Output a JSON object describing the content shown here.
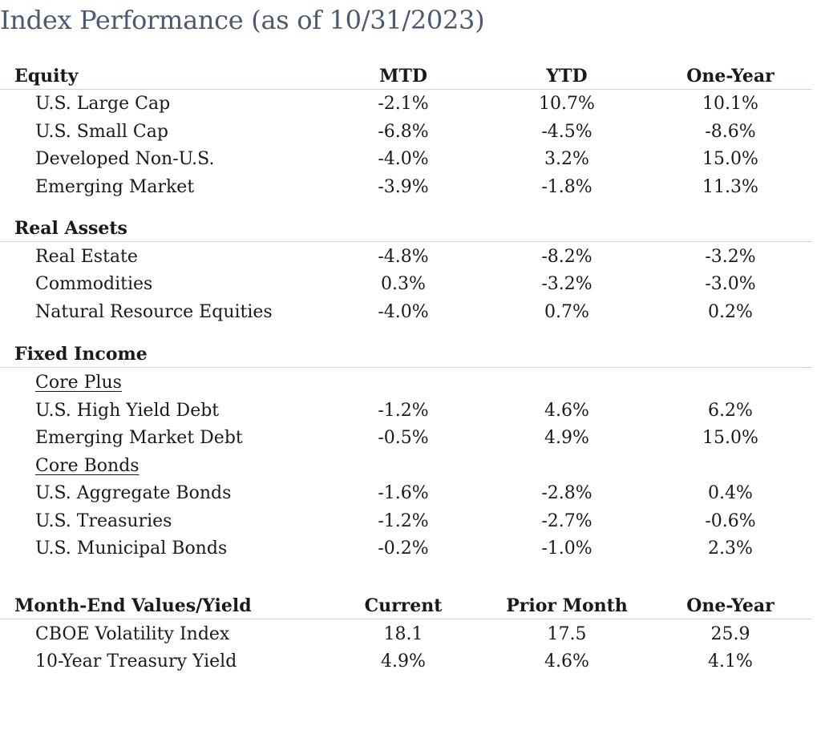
{
  "title": "Index Performance (as of 10/31/2023)",
  "sections": {
    "equity": {
      "header": [
        "Equity",
        "MTD",
        "YTD",
        "One-Year"
      ],
      "rows": [
        [
          "U.S. Large Cap",
          "-2.1%",
          "10.7%",
          "10.1%"
        ],
        [
          "U.S. Small Cap",
          "-6.8%",
          "-4.5%",
          "-8.6%"
        ],
        [
          "Developed Non-U.S.",
          "-4.0%",
          "3.2%",
          "15.0%"
        ],
        [
          "Emerging Market",
          "-3.9%",
          "-1.8%",
          "11.3%"
        ]
      ]
    },
    "real_assets": {
      "header": [
        "Real Assets"
      ],
      "rows": [
        [
          "Real Estate",
          "-4.8%",
          "-8.2%",
          "-3.2%"
        ],
        [
          "Commodities",
          "0.3%",
          "-3.2%",
          "-3.0%"
        ],
        [
          "Natural Resource Equities",
          "-4.0%",
          "0.7%",
          "0.2%"
        ]
      ]
    },
    "fixed_income": {
      "header": [
        "Fixed Income"
      ],
      "core_plus_label": "Core Plus",
      "core_plus_rows": [
        [
          "U.S. High Yield Debt",
          "-1.2%",
          "4.6%",
          "6.2%"
        ],
        [
          "Emerging Market Debt",
          "-0.5%",
          "4.9%",
          "15.0%"
        ]
      ],
      "core_bonds_label": "Core Bonds",
      "core_bonds_rows": [
        [
          "U.S. Aggregate Bonds",
          "-1.6%",
          "-2.8%",
          "0.4%"
        ],
        [
          "U.S. Treasuries",
          "-1.2%",
          "-2.7%",
          "-0.6%"
        ],
        [
          "U.S. Municipal Bonds",
          "-0.2%",
          "-1.0%",
          "2.3%"
        ]
      ]
    },
    "month_end": {
      "header": [
        "Month-End Values/Yield",
        "Current",
        "Prior Month",
        "One-Year"
      ],
      "rows": [
        [
          "CBOE Volatility Index",
          "18.1",
          "17.5",
          "25.9"
        ],
        [
          "10-Year Treasury Yield",
          "4.9%",
          "4.6%",
          "4.1%"
        ]
      ]
    }
  },
  "colors": {
    "title": "#4a5a72",
    "text": "#1a1a1a",
    "rule": "#c4dce8"
  }
}
